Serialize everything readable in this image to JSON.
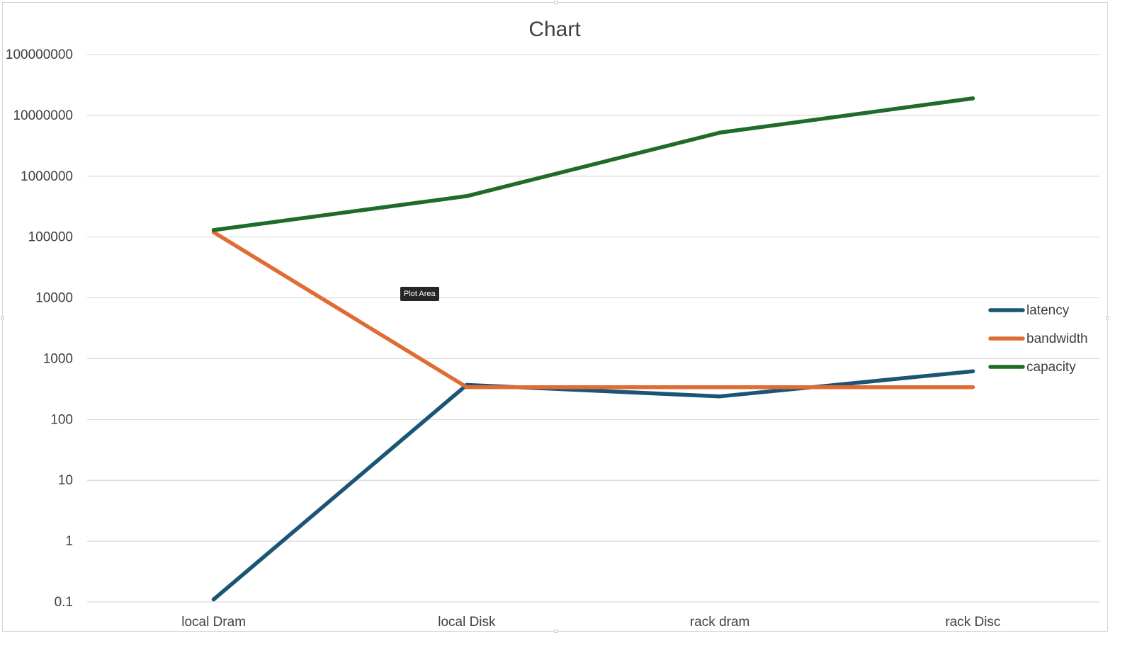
{
  "chart_data": {
    "type": "line",
    "title": "Chart",
    "y_scale": "log",
    "ylim": [
      0.1,
      100000000
    ],
    "y_ticks": [
      "0.1",
      "1",
      "10",
      "100",
      "1000",
      "10000",
      "100000",
      "1000000",
      "10000000",
      "100000000"
    ],
    "categories": [
      "local Dram",
      "local Disk",
      "rack dram",
      "rack Disc"
    ],
    "series": [
      {
        "name": "latency",
        "color": "#1b5575",
        "values": [
          0.11,
          370,
          240,
          620
        ]
      },
      {
        "name": "bandwidth",
        "color": "#e06c35",
        "values": [
          120000,
          340,
          340,
          340
        ]
      },
      {
        "name": "capacity",
        "color": "#1e6b2a",
        "values": [
          130000,
          470000,
          5200000,
          19000000
        ]
      }
    ],
    "grid": true,
    "legend_position": "right"
  },
  "tooltip": {
    "text": "Plot Area"
  }
}
